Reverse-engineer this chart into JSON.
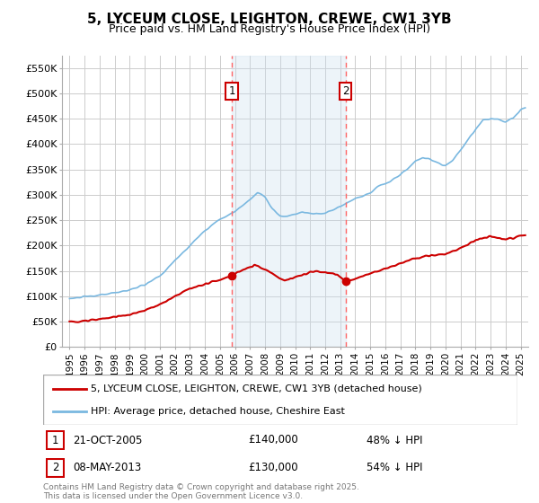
{
  "title": "5, LYCEUM CLOSE, LEIGHTON, CREWE, CW1 3YB",
  "subtitle": "Price paid vs. HM Land Registry's House Price Index (HPI)",
  "xlim": [
    1994.5,
    2025.5
  ],
  "ylim": [
    0,
    575000
  ],
  "yticks": [
    0,
    50000,
    100000,
    150000,
    200000,
    250000,
    300000,
    350000,
    400000,
    450000,
    500000,
    550000
  ],
  "ytick_labels": [
    "£0",
    "£50K",
    "£100K",
    "£150K",
    "£200K",
    "£250K",
    "£300K",
    "£350K",
    "£400K",
    "£450K",
    "£500K",
    "£550K"
  ],
  "xtick_years": [
    1995,
    1996,
    1997,
    1998,
    1999,
    2000,
    2001,
    2002,
    2003,
    2004,
    2005,
    2006,
    2007,
    2008,
    2009,
    2010,
    2011,
    2012,
    2013,
    2014,
    2015,
    2016,
    2017,
    2018,
    2019,
    2020,
    2021,
    2022,
    2023,
    2024,
    2025
  ],
  "hpi_color": "#7ab8e0",
  "price_color": "#cc0000",
  "event1_x": 2005.8,
  "event2_x": 2013.35,
  "event1_price": 140000,
  "event2_price": 130000,
  "event1_label": "21-OCT-2005",
  "event2_label": "08-MAY-2013",
  "event1_pct": "48% ↓ HPI",
  "event2_pct": "54% ↓ HPI",
  "legend_property": "5, LYCEUM CLOSE, LEIGHTON, CREWE, CW1 3YB (detached house)",
  "legend_hpi": "HPI: Average price, detached house, Cheshire East",
  "footer": "Contains HM Land Registry data © Crown copyright and database right 2025.\nThis data is licensed under the Open Government Licence v3.0.",
  "background_color": "#ffffff",
  "grid_color": "#cccccc",
  "shade_color": "#cce0f0"
}
